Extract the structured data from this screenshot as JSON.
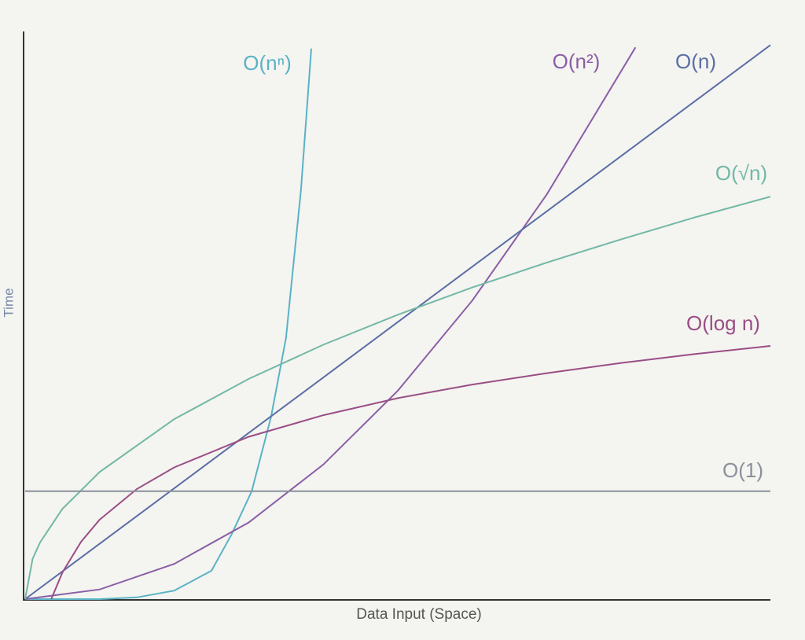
{
  "chart_data": {
    "type": "line",
    "x_label": "Data Input (Space)",
    "y_label": "Time",
    "xlim": [
      0,
      100
    ],
    "ylim": [
      0,
      100
    ],
    "series": [
      {
        "name": "O(nⁿ)",
        "color": "#5ab2c6",
        "x": [
          0,
          10,
          15,
          20,
          25,
          27.7,
          30.4,
          33,
          35,
          37,
          38.4
        ],
        "values": [
          0,
          0,
          0.3,
          1.5,
          5,
          11.4,
          19,
          32.1,
          46,
          72,
          97
        ]
      },
      {
        "name": "O(n²)",
        "color": "#8a5ea6",
        "x": [
          0,
          10,
          20,
          30,
          40,
          50,
          60,
          70,
          81.9
        ],
        "values": [
          0,
          1.7,
          6.2,
          13.5,
          23.7,
          36.7,
          52.6,
          71.3,
          97.2
        ]
      },
      {
        "name": "O(n)",
        "color": "#5a6ea6",
        "x": [
          0,
          100
        ],
        "values": [
          0,
          97.6
        ]
      },
      {
        "name": "O(√n)",
        "color": "#72b8a6",
        "x": [
          0,
          1,
          2,
          5,
          10,
          20,
          30,
          40,
          50,
          60,
          70,
          80,
          90,
          100
        ],
        "values": [
          0,
          7.1,
          10,
          15.9,
          22.4,
          31.7,
          38.8,
          44.8,
          50.1,
          54.9,
          59.3,
          63.4,
          67.3,
          70.9
        ]
      },
      {
        "name": "O(log n)",
        "color": "#9a4e86",
        "x": [
          3.5,
          5,
          7.5,
          10,
          15,
          20,
          30,
          40,
          50,
          60,
          70,
          80,
          90,
          100
        ],
        "values": [
          0,
          4.7,
          10.1,
          14,
          19.4,
          23.2,
          28.6,
          32.4,
          35.4,
          37.8,
          39.8,
          41.6,
          43.2,
          44.6
        ]
      },
      {
        "name": "O(1)",
        "color": "#8a909a",
        "x": [
          0,
          100
        ],
        "values": [
          19,
          19
        ]
      }
    ]
  }
}
